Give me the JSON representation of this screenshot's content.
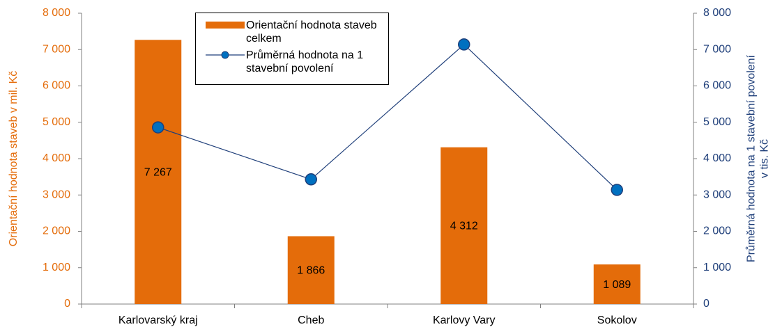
{
  "chart_data": {
    "type": "bar",
    "categories": [
      "Karlovarský kraj",
      "Cheb",
      "Karlovy Vary",
      "Sokolov"
    ],
    "series": [
      {
        "name": "Orientační hodnota staveb celkem",
        "type": "bar",
        "color": "#e46c0a",
        "values": [
          7267,
          1866,
          4312,
          1089
        ],
        "value_labels": [
          "7 267",
          "1 866",
          "4 312",
          "1 089"
        ]
      },
      {
        "name": "Průměrná hodnota na 1 stavební povolení",
        "type": "line",
        "axis": "y2",
        "color": "#1f3f7a",
        "marker_color": "#0070c0",
        "values": [
          4860,
          3430,
          7140,
          3140
        ]
      }
    ],
    "ylabel": "Orientační hodnota staveb v mil. Kč",
    "y2label": [
      "Průměrná hodnota na 1 stavební povolení",
      "v tis. Kč"
    ],
    "ylim": [
      0,
      8000
    ],
    "yticks": [
      0,
      {
        "value": 1000,
        "label": "1 000"
      },
      {
        "value": 2000,
        "label": "2 000"
      },
      {
        "value": 3000,
        "label": "3 000"
      },
      {
        "value": 4000,
        "label": "4 000"
      },
      {
        "value": 5000,
        "label": "5 000"
      },
      {
        "value": 6000,
        "label": "6 000"
      },
      {
        "value": 7000,
        "label": "7 000"
      },
      {
        "value": 8000,
        "label": "8 000"
      }
    ],
    "y2lim": [
      0,
      8000
    ],
    "y2ticks": [
      0,
      {
        "value": 1000,
        "label": "1 000"
      },
      {
        "value": 2000,
        "label": "2 000"
      },
      {
        "value": 3000,
        "label": "3 000"
      },
      {
        "value": 4000,
        "label": "4 000"
      },
      {
        "value": 5000,
        "label": "5 000"
      },
      {
        "value": 6000,
        "label": "6 000"
      },
      {
        "value": 7000,
        "label": "7 000"
      },
      {
        "value": 8000,
        "label": "8 000"
      }
    ],
    "ylabel_color": "#e46c0a",
    "y2label_color": "#1f3f7a",
    "grid": false
  }
}
